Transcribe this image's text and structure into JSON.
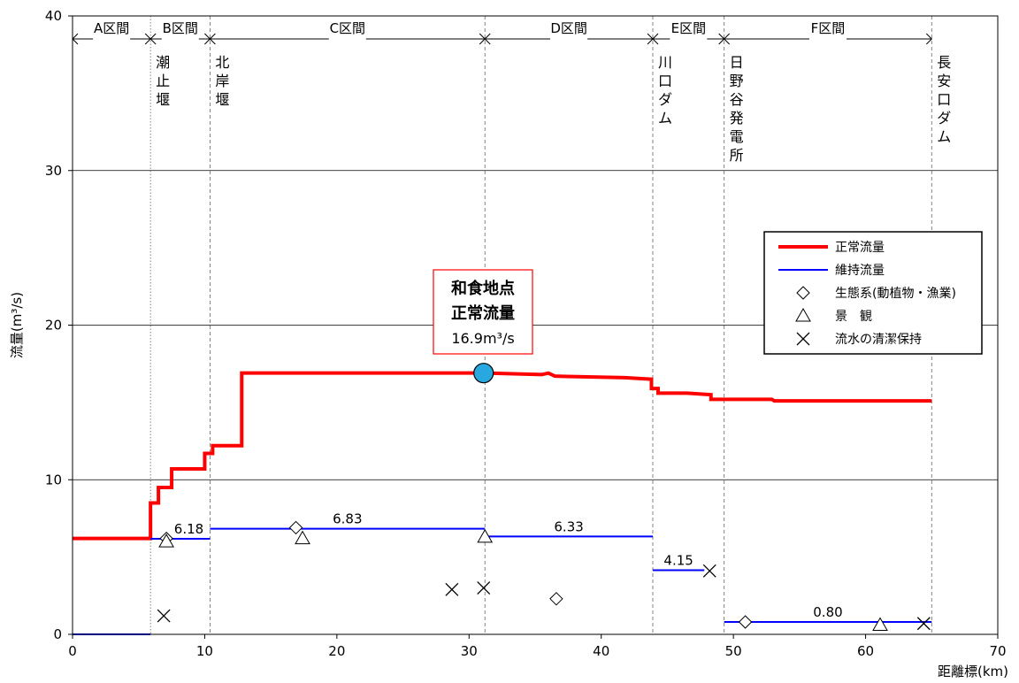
{
  "chart_data": {
    "type": "line",
    "title": "",
    "xlabel": "距離標(km)",
    "ylabel": "流量(m³/s)",
    "xlim": [
      0,
      70
    ],
    "ylim": [
      0,
      40
    ],
    "xticks": [
      0,
      10,
      20,
      30,
      40,
      50,
      60,
      70
    ],
    "yticks": [
      0,
      10,
      20,
      30,
      40
    ],
    "grid": "horizontal",
    "legend_position": "right",
    "legend": [
      "正常流量",
      "維持流量",
      "生態系(動植物・漁業)",
      "景　観",
      "流水の清潔保持"
    ],
    "sections": [
      {
        "label": "A区間",
        "from": 0,
        "to": 5.9
      },
      {
        "label": "B区間",
        "from": 5.9,
        "to": 10.4
      },
      {
        "label": "C区間",
        "from": 10.4,
        "to": 31.2
      },
      {
        "label": "D区間",
        "from": 31.2,
        "to": 43.9
      },
      {
        "label": "E区間",
        "from": 43.9,
        "to": 49.3
      },
      {
        "label": "F区間",
        "from": 49.3,
        "to": 65.0
      }
    ],
    "boundaries": [
      {
        "x": 5.9,
        "style": "dotted",
        "label": [
          "潮",
          "止",
          "堰"
        ]
      },
      {
        "x": 10.4,
        "style": "dashed",
        "label": [
          "北",
          "岸",
          "堰"
        ]
      },
      {
        "x": 31.2,
        "style": "dashed",
        "label": []
      },
      {
        "x": 43.9,
        "style": "dashed",
        "label": [
          "川",
          "口",
          "ダ",
          "ム"
        ]
      },
      {
        "x": 49.3,
        "style": "dashed",
        "label": [
          "日",
          "野",
          "谷",
          "発",
          "電",
          "所"
        ]
      },
      {
        "x": 65.0,
        "style": "dashed",
        "label": [
          "長",
          "安",
          "口",
          "ダ",
          "ム"
        ]
      }
    ],
    "series": [
      {
        "name": "正常流量",
        "color": "#ff0000",
        "points": [
          [
            0,
            6.2
          ],
          [
            5.9,
            6.2
          ],
          [
            5.9,
            8.5
          ],
          [
            6.5,
            8.5
          ],
          [
            6.5,
            9.5
          ],
          [
            7.5,
            9.5
          ],
          [
            7.5,
            10.7
          ],
          [
            10.0,
            10.7
          ],
          [
            10.0,
            11.7
          ],
          [
            10.6,
            11.7
          ],
          [
            10.6,
            12.2
          ],
          [
            12.8,
            12.2
          ],
          [
            12.8,
            16.9
          ],
          [
            31.2,
            16.9
          ],
          [
            35.5,
            16.8
          ],
          [
            36.0,
            16.9
          ],
          [
            36.5,
            16.7
          ],
          [
            41.8,
            16.6
          ],
          [
            43.8,
            16.5
          ],
          [
            43.8,
            15.9
          ],
          [
            44.3,
            15.9
          ],
          [
            44.3,
            15.6
          ],
          [
            46.5,
            15.6
          ],
          [
            48.3,
            15.5
          ],
          [
            48.3,
            15.2
          ],
          [
            49.3,
            15.2
          ],
          [
            52.9,
            15.2
          ],
          [
            53.1,
            15.1
          ],
          [
            65.0,
            15.1
          ]
        ]
      },
      {
        "name": "維持流量",
        "color": "#0000ff",
        "segments": [
          {
            "from": 0,
            "to": 5.9,
            "value": 0,
            "label": ""
          },
          {
            "from": 5.9,
            "to": 10.4,
            "value": 6.18,
            "label": "6.18"
          },
          {
            "from": 10.4,
            "to": 31.2,
            "value": 6.83,
            "label": "6.83"
          },
          {
            "from": 31.2,
            "to": 43.9,
            "value": 6.33,
            "label": "6.33"
          },
          {
            "from": 43.9,
            "to": 47.8,
            "value": 4.15,
            "label": "4.15"
          },
          {
            "from": 49.3,
            "to": 65.0,
            "value": 0.8,
            "label": "0.80"
          }
        ]
      },
      {
        "name": "生態系(動植物・漁業)",
        "marker": "diamond",
        "points": [
          [
            7.1,
            6.2
          ],
          [
            16.9,
            6.9
          ],
          [
            36.6,
            2.3
          ],
          [
            50.9,
            0.8
          ]
        ]
      },
      {
        "name": "景　観",
        "marker": "triangle",
        "points": [
          [
            7.1,
            6.0
          ],
          [
            17.4,
            6.2
          ],
          [
            31.2,
            6.3
          ],
          [
            61.1,
            0.6
          ]
        ]
      },
      {
        "name": "流水の清潔保持",
        "marker": "cross",
        "points": [
          [
            6.9,
            1.2
          ],
          [
            28.7,
            2.9
          ],
          [
            31.1,
            3.0
          ],
          [
            48.2,
            4.1
          ],
          [
            64.4,
            0.7
          ]
        ]
      }
    ],
    "annotation": {
      "lines": [
        "和食地点",
        "正常流量",
        "16.9m³/s"
      ],
      "point": [
        31.1,
        16.9
      ],
      "marker_color": "#29a8e0",
      "text_color": "#ff0000"
    }
  }
}
